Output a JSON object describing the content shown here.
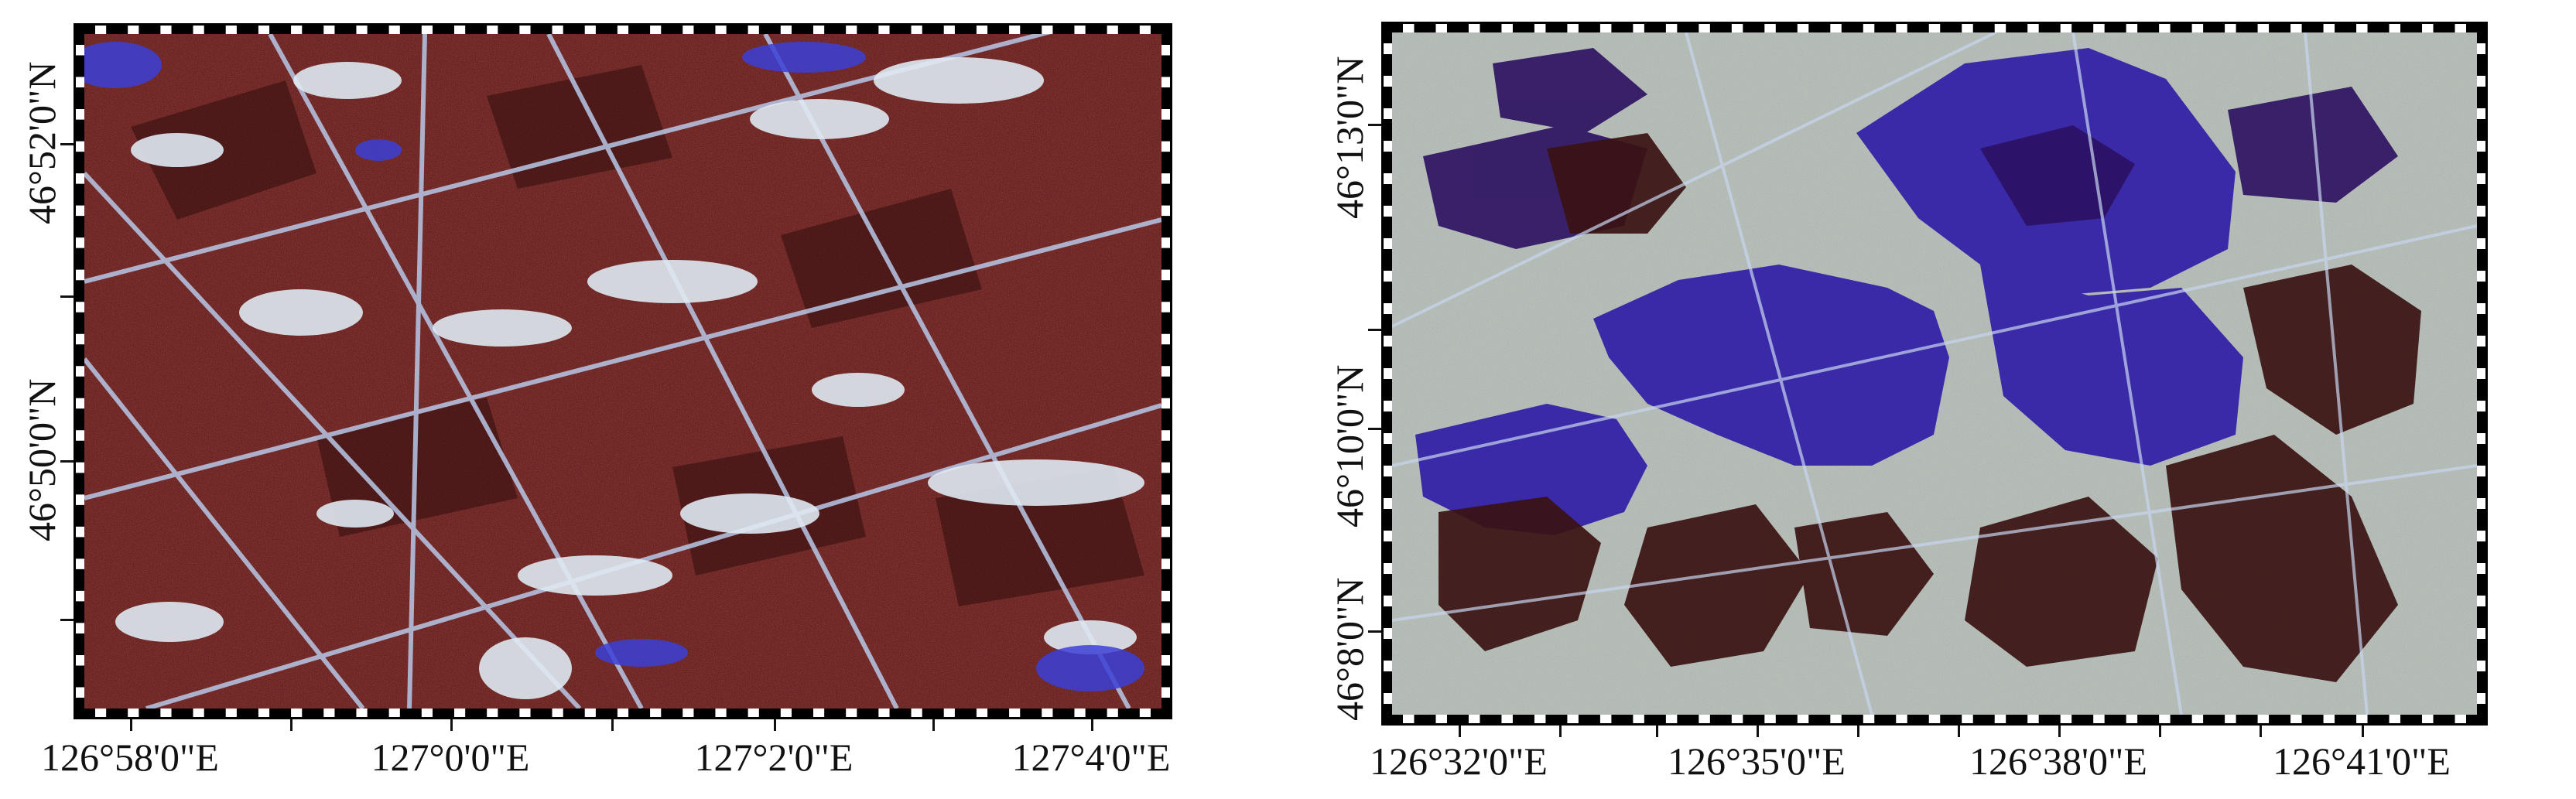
{
  "left_map": {
    "longitude_labels": [
      "126°58'0\"E",
      "127°0'0\"E",
      "127°2'0\"E",
      "127°4'0\"E"
    ],
    "latitude_labels": [
      "46°52'0\"N",
      "46°50'0\"N"
    ],
    "dominant_colors": [
      "#5a1512",
      "#7a1d1a",
      "#2f0d0c",
      "#d8e6ef",
      "#3b3fd6"
    ]
  },
  "right_map": {
    "longitude_labels": [
      "126°32'0\"E",
      "126°35'0\"E",
      "126°38'0\"E",
      "126°41'0\"E"
    ],
    "latitude_labels": [
      "46°13'0\"N",
      "46°10'0\"N",
      "46°8'0\"N"
    ],
    "dominant_colors": [
      "#3a2aa8",
      "#2b1060",
      "#3a1212",
      "#a8c6a6",
      "#d6c0d6"
    ]
  }
}
